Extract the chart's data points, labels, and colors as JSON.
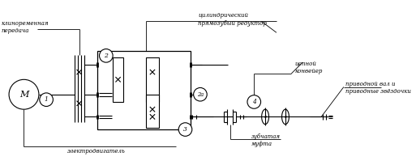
{
  "bg_color": "#ffffff",
  "line_color": "#000000",
  "figsize": [
    5.13,
    2.04
  ],
  "dpi": 100,
  "labels": {
    "klinorem": "клиноременная\nпередача",
    "tsilindrich": "цилиндрический\nпрямозубый редуктор",
    "tsepnoy": "цепной\nконвейер",
    "privodnoy": "приводной вал и\nприводные звёздочки",
    "elektro": "электродвигатель",
    "zubchataya": "зубчатая\nмуфта",
    "num1": "1",
    "num2": "2",
    "num2a": "2а",
    "num3": "3",
    "num4": "4",
    "M": "М"
  }
}
